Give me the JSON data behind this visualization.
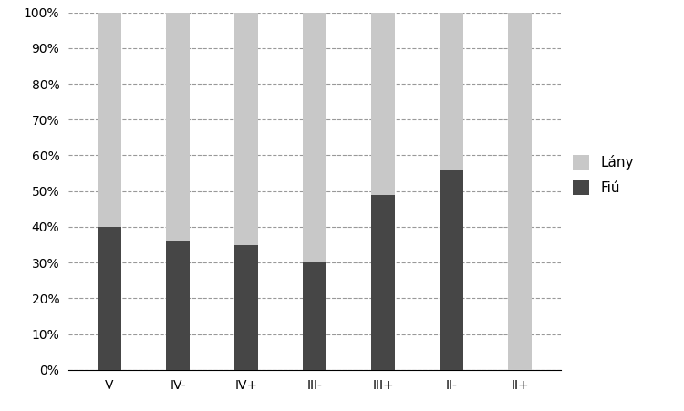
{
  "categories": [
    "V",
    "IV-",
    "IV+",
    "III-",
    "III+",
    "II-",
    "II+"
  ],
  "fiu_values": [
    0.4,
    0.36,
    0.35,
    0.3,
    0.49,
    0.56,
    0.0
  ],
  "lany_values": [
    0.6,
    0.64,
    0.65,
    0.7,
    0.51,
    0.44,
    1.0
  ],
  "fiu_color": "#464646",
  "lany_color": "#c8c8c8",
  "fiu_label": "Fiú",
  "lany_label": "Lány",
  "ylim": [
    0,
    1.0
  ],
  "yticks": [
    0.0,
    0.1,
    0.2,
    0.3,
    0.4,
    0.5,
    0.6,
    0.7,
    0.8,
    0.9,
    1.0
  ],
  "background_color": "#ffffff",
  "grid_color": "#999999",
  "bar_width": 0.35,
  "tick_fontsize": 10,
  "legend_fontsize": 11
}
